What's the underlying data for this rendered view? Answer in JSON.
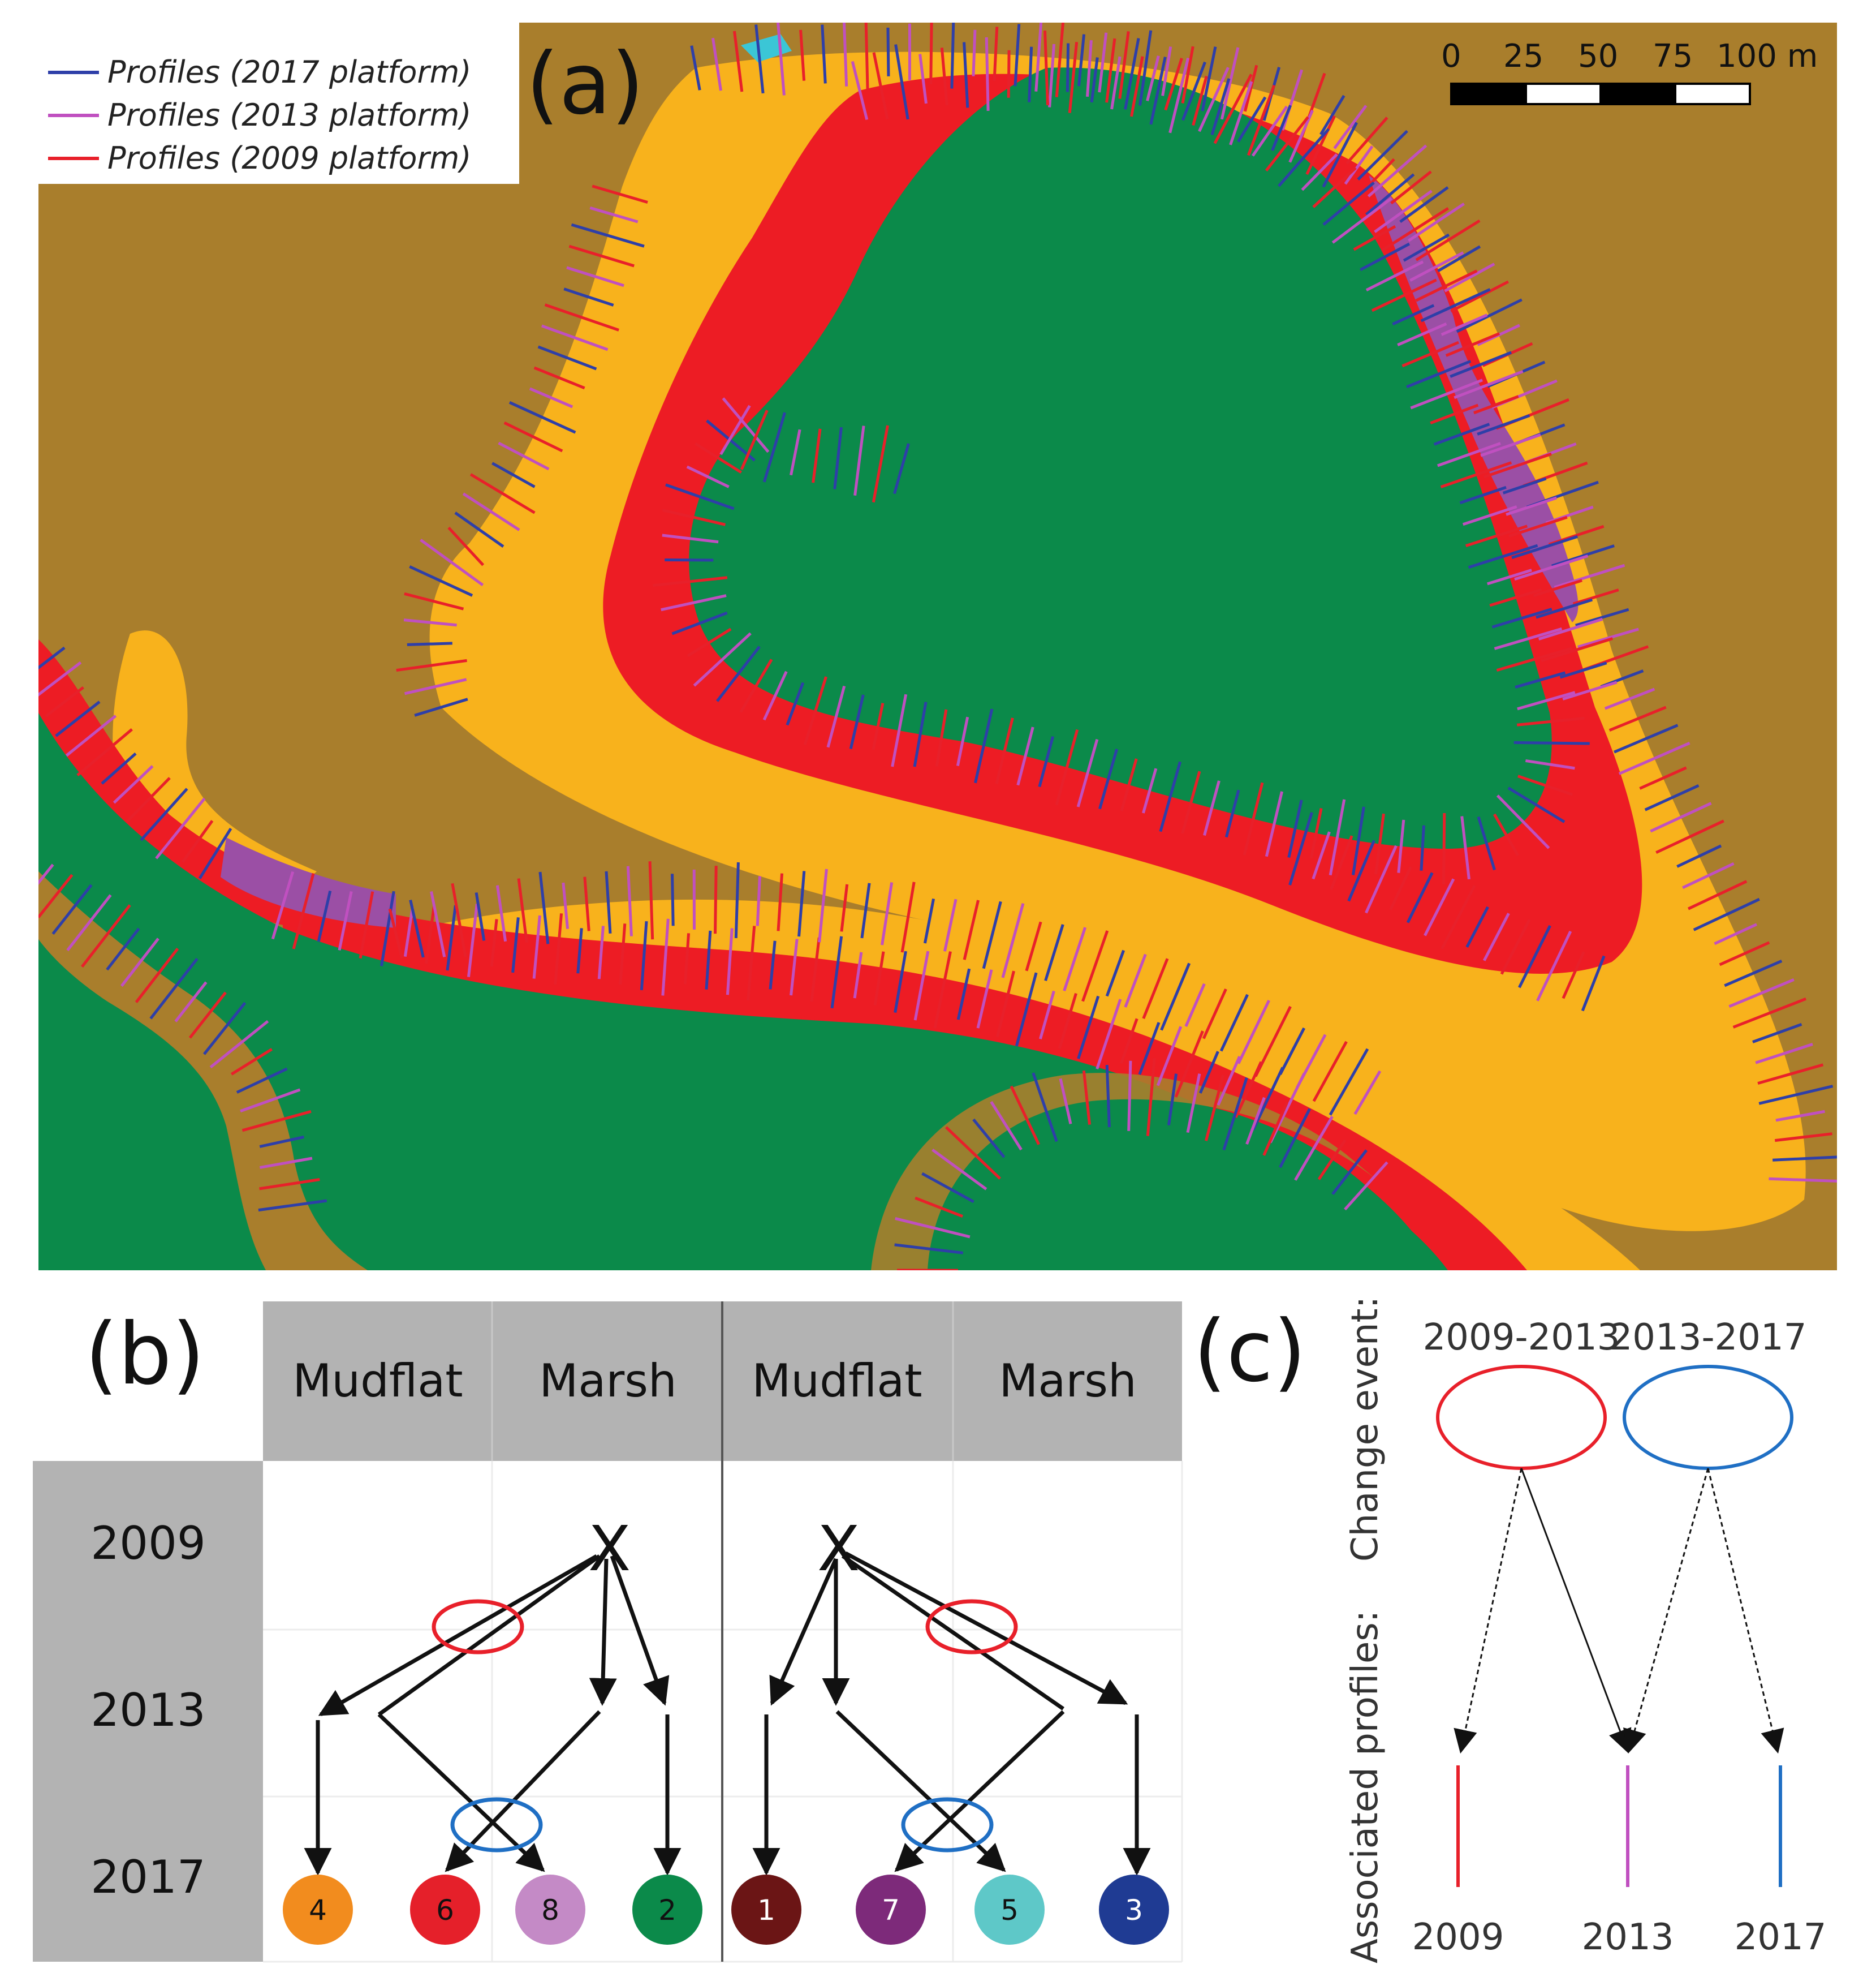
{
  "panel_a": {
    "label": "(a)",
    "legend": [
      {
        "text": "Profiles (2017 platform)",
        "color": "#2e3fa8"
      },
      {
        "text": "Profiles (2013 platform)",
        "color": "#c050c0"
      },
      {
        "text": "Profiles (2009 platform)",
        "color": "#e8202a"
      }
    ],
    "scale_bar": {
      "ticks": [
        "0",
        "25",
        "50",
        "75",
        "100 m"
      ]
    },
    "colors": {
      "mudflat": "#a97e2c",
      "yellow": "#f8b21c",
      "red": "#ed1c24",
      "green": "#0b8a4a",
      "purple": "#9b4fa5",
      "cyan": "#3bc6d6"
    }
  },
  "panel_b": {
    "label": "(b)",
    "headers": [
      "Mudflat",
      "Marsh",
      "Mudflat",
      "Marsh"
    ],
    "years": [
      "2009",
      "2013",
      "2017"
    ],
    "start_marker": "X",
    "left_nodes": [
      {
        "label": "4",
        "color": "#f28c1e"
      },
      {
        "label": "6",
        "color": "#e5202a"
      },
      {
        "label": "8",
        "color": "#c48ac6"
      },
      {
        "label": "2",
        "color": "#0b8a4a"
      }
    ],
    "right_nodes": [
      {
        "label": "1",
        "color": "#6b1515"
      },
      {
        "label": "7",
        "color": "#7d2a7a"
      },
      {
        "label": "5",
        "color": "#5ec8c8"
      },
      {
        "label": "3",
        "color": "#1f3b93"
      }
    ],
    "event_colors": {
      "first": "#e8202a",
      "second": "#1f6fc4"
    }
  },
  "panel_c": {
    "label": "(c)",
    "change_event_label": "Change event:",
    "associated_label": "Associated profiles:",
    "events": [
      {
        "label": "2009-2013",
        "color": "#e8202a"
      },
      {
        "label": "2013-2017",
        "color": "#1f6fc4"
      }
    ],
    "profiles": [
      {
        "label": "2009",
        "color": "#e8202a"
      },
      {
        "label": "2013",
        "color": "#c050c0"
      },
      {
        "label": "2017",
        "color": "#1f6fc4"
      }
    ]
  }
}
